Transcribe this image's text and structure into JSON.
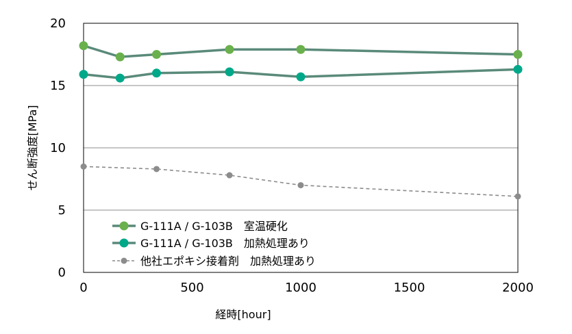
{
  "chart_data": {
    "type": "line",
    "title": "",
    "xlabel": "経時[hour]",
    "ylabel": "せん断強度[MPa]",
    "xlim": [
      0,
      2000
    ],
    "ylim": [
      0,
      20
    ],
    "xticks": [
      0,
      500,
      1000,
      1500,
      2000
    ],
    "yticks": [
      0,
      5,
      10,
      15,
      20
    ],
    "grid": "horizontal",
    "legend_position": "bottom-left inside",
    "series": [
      {
        "name": "G-111A / G-103B　室温硬化",
        "color": "#5a8a7a",
        "marker_color": "#6ab04c",
        "line_style": "solid",
        "x": [
          0,
          168,
          336,
          672,
          1000,
          2000
        ],
        "y": [
          18.2,
          17.3,
          17.5,
          17.9,
          17.9,
          17.5
        ]
      },
      {
        "name": "G-111A / G-103B　加熱処理あり",
        "color": "#5a8a7a",
        "marker_color": "#00a88a",
        "line_style": "solid",
        "x": [
          0,
          168,
          336,
          672,
          1000,
          2000
        ],
        "y": [
          15.9,
          15.6,
          16.0,
          16.1,
          15.7,
          16.3
        ]
      },
      {
        "name": "他社エポキシ接着剤　加熱処理あり",
        "color": "#8a8a8a",
        "marker_color": "#8c8c8c",
        "line_style": "dashed",
        "x": [
          0,
          336,
          672,
          1000,
          2000
        ],
        "y": [
          8.5,
          8.3,
          7.8,
          7.0,
          6.1
        ]
      }
    ]
  }
}
